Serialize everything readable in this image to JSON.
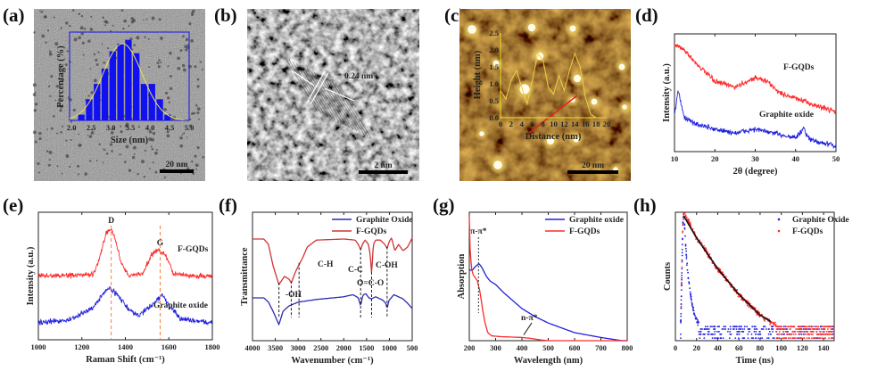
{
  "panel_labels": [
    "(a)",
    "(b)",
    "(c)",
    "(d)",
    "(e)",
    "(f)",
    "(g)",
    "(h)"
  ],
  "colors": {
    "red": "#ff2a2a",
    "blue": "#2020e0",
    "ftir_red": "#d03434",
    "ftir_blue": "#2a2ab0",
    "inset_yellow": "#f0e020",
    "afm_brown": "#6a3c08"
  },
  "panel_a": {
    "scale_bar": "20 nm",
    "inset": {
      "type": "bar",
      "xlabel": "Size (nm)",
      "ylabel": "Percentage (%)",
      "xlim": [
        1.95,
        5.0
      ],
      "xticks": [
        "2.0",
        "2.5",
        "3.0",
        "3.5",
        "4.0",
        "4.5",
        "5.0"
      ],
      "bar_centers": [
        2.25,
        2.45,
        2.65,
        2.85,
        3.05,
        3.25,
        3.45,
        3.65,
        3.85,
        4.05,
        4.25,
        4.45
      ],
      "bar_values": [
        1.5,
        5.5,
        9.5,
        13.5,
        18,
        20,
        21,
        17.5,
        9.5,
        9.5,
        5.5,
        1.5
      ],
      "fit": {
        "type": "gaussian",
        "mean": 3.3,
        "sigma": 0.5,
        "peak": 20
      }
    }
  },
  "panel_b": {
    "scale_bar": "2 nm",
    "lattice_spacing": "0.24 nm"
  },
  "panel_c": {
    "scale_bar": "20 nm",
    "inset": {
      "type": "line",
      "xlabel": "Distance (nm)",
      "ylabel": "Height (nm)",
      "xlim": [
        0,
        20
      ],
      "ylim": [
        0,
        2.5
      ],
      "xticks": [
        "0",
        "2",
        "4",
        "6",
        "8",
        "10",
        "12",
        "14",
        "16",
        "18",
        "20"
      ],
      "yticks": [
        "0.0",
        "0.5",
        "1.0",
        "1.5",
        "2.0",
        "2.5"
      ],
      "x": [
        0,
        1,
        2,
        3,
        4,
        5,
        6,
        7,
        8,
        9,
        10,
        11,
        12,
        13,
        14,
        15,
        16,
        17,
        18,
        20
      ],
      "y": [
        0.8,
        0.55,
        1.1,
        1.4,
        0.9,
        0.4,
        1.1,
        1.9,
        1.7,
        0.9,
        0.7,
        1.25,
        0.8,
        1.4,
        1.9,
        1.5,
        0.6,
        0.1,
        0.0,
        0.0
      ]
    }
  },
  "chart_data": [
    {
      "id": "d",
      "type": "line",
      "xlabel": "2θ (degree)",
      "ylabel": "Intensity (a.u.)",
      "xlim": [
        10,
        50
      ],
      "ylim": [
        -0.1,
        2.0
      ],
      "xticks": [
        "10",
        "20",
        "30",
        "40",
        "50"
      ],
      "series": [
        {
          "name": "F-GQDs",
          "x": [
            10,
            12,
            15,
            20,
            25,
            30,
            33,
            36,
            40,
            45,
            50
          ],
          "y": [
            1.8,
            1.75,
            1.5,
            1.15,
            1.05,
            1.22,
            1.15,
            0.95,
            0.85,
            0.72,
            0.62
          ]
        },
        {
          "name": "Graphite oxide",
          "x": [
            10,
            10.6,
            11,
            11.5,
            12.5,
            15,
            20,
            25,
            30,
            35,
            40,
            41.5,
            42,
            42.6,
            44,
            50
          ],
          "y": [
            0.55,
            0.85,
            0.98,
            0.8,
            0.5,
            0.4,
            0.3,
            0.23,
            0.3,
            0.22,
            0.15,
            0.25,
            0.35,
            0.18,
            0.1,
            0.0
          ]
        }
      ]
    },
    {
      "id": "e",
      "type": "line",
      "xlabel": "Raman Shift (cm⁻¹)",
      "ylabel": "Intensity (a.u.)",
      "xlim": [
        1000,
        1800
      ],
      "ylim": [
        -0.2,
        2.2
      ],
      "xticks": [
        "1000",
        "1200",
        "1400",
        "1600",
        "1800"
      ],
      "annotations": [
        {
          "text": "D",
          "x": 1335
        },
        {
          "text": "G",
          "x": 1560
        }
      ],
      "series": [
        {
          "name": "F-GQDs",
          "x": [
            1000,
            1250,
            1280,
            1310,
            1330,
            1350,
            1380,
            1420,
            1480,
            1520,
            1555,
            1590,
            1620,
            1700,
            1800
          ],
          "y": [
            1.0,
            1.02,
            1.3,
            1.8,
            1.9,
            1.75,
            1.25,
            1.0,
            1.05,
            1.4,
            1.5,
            1.35,
            1.05,
            1.0,
            1.0
          ]
        },
        {
          "name": "Graphite oxide",
          "x": [
            1000,
            1150,
            1250,
            1300,
            1330,
            1370,
            1420,
            1460,
            1520,
            1570,
            1600,
            1650,
            1800
          ],
          "y": [
            0.12,
            0.18,
            0.4,
            0.68,
            0.78,
            0.62,
            0.35,
            0.25,
            0.45,
            0.65,
            0.45,
            0.2,
            0.12
          ]
        }
      ]
    },
    {
      "id": "f",
      "type": "line",
      "xlabel": "Wavenumber (cm⁻¹)",
      "ylabel": "Transmittance",
      "xlim": [
        4000,
        500
      ],
      "ylim": [
        -0.3,
        2.1
      ],
      "xticks": [
        "4000",
        "3500",
        "3000",
        "2500",
        "2000",
        "1500",
        "1000",
        "500"
      ],
      "legend": "top-right",
      "series": [
        {
          "name": "Graphite Oxide",
          "x": [
            4000,
            3750,
            3650,
            3550,
            3420,
            3330,
            3200,
            3000,
            2600,
            2000,
            1800,
            1680,
            1630,
            1580,
            1520,
            1450,
            1400,
            1300,
            1150,
            1080,
            1050,
            1010,
            900,
            700,
            600,
            500
          ],
          "y": [
            0.5,
            0.5,
            0.42,
            0.25,
            0.0,
            0.25,
            0.35,
            0.42,
            0.47,
            0.52,
            0.56,
            0.5,
            0.35,
            0.55,
            0.58,
            0.5,
            0.48,
            0.52,
            0.46,
            0.4,
            0.3,
            0.45,
            0.56,
            0.48,
            0.4,
            0.3
          ]
        },
        {
          "name": "F-GQDs",
          "x": [
            4000,
            3750,
            3650,
            3550,
            3420,
            3300,
            3200,
            3150,
            3050,
            2980,
            2900,
            2800,
            2600,
            2000,
            1750,
            1680,
            1630,
            1580,
            1530,
            1460,
            1420,
            1390,
            1350,
            1300,
            1200,
            1100,
            1050,
            1000,
            950,
            880,
            800,
            700,
            600,
            500
          ],
          "y": [
            1.6,
            1.6,
            1.5,
            1.1,
            0.75,
            0.9,
            0.85,
            0.78,
            1.0,
            1.12,
            1.25,
            1.45,
            1.58,
            1.6,
            1.58,
            1.5,
            1.4,
            1.52,
            1.58,
            1.5,
            1.3,
            0.95,
            1.5,
            1.58,
            1.58,
            1.5,
            1.42,
            1.56,
            1.62,
            1.38,
            1.5,
            1.38,
            1.45,
            1.62
          ]
        }
      ],
      "annotations": [
        {
          "text": "C-H",
          "marks": [
            2980
          ]
        },
        {
          "text": "-OH",
          "marks": [
            3420,
            3150
          ]
        },
        {
          "text": "C-C",
          "marks": [
            1630
          ]
        },
        {
          "text": "O=C-O",
          "marks": [
            1390
          ]
        },
        {
          "text": "C-OH",
          "marks": [
            1050
          ]
        }
      ]
    },
    {
      "id": "g",
      "type": "line",
      "xlabel": "Wavelength (nm)",
      "ylabel": "Absorption",
      "xlim": [
        200,
        800
      ],
      "ylim": [
        0,
        1.6
      ],
      "xticks": [
        "200",
        "300",
        "400",
        "500",
        "600",
        "700",
        "800"
      ],
      "legend": "top-right",
      "annotations": [
        {
          "text": "π-π*",
          "x": 235
        },
        {
          "text": "n-π*",
          "x": 400
        }
      ],
      "series": [
        {
          "name": "Graphite oxide",
          "x": [
            200,
            212,
            225,
            237,
            250,
            265,
            280,
            300,
            330,
            400,
            450,
            500,
            600,
            700,
            780,
            800
          ],
          "y": [
            0.88,
            0.88,
            0.93,
            0.96,
            0.9,
            0.8,
            0.74,
            0.7,
            0.6,
            0.4,
            0.3,
            0.22,
            0.1,
            0.04,
            0.0,
            0.0
          ]
        },
        {
          "name": "F-GQDs",
          "x": [
            200,
            203,
            208,
            215,
            230,
            240,
            250,
            260,
            270,
            285,
            320,
            400,
            430,
            470,
            500,
            800
          ],
          "y": [
            1.55,
            1.15,
            0.9,
            0.82,
            0.75,
            0.62,
            0.4,
            0.22,
            0.1,
            0.06,
            0.05,
            0.04,
            0.03,
            0.01,
            0.0,
            0.0
          ]
        }
      ]
    },
    {
      "id": "h",
      "type": "scatter",
      "xlabel": "Time (ns)",
      "ylabel": "Counts",
      "xlim": [
        0,
        150
      ],
      "ylim": [
        0,
        1.0
      ],
      "xticks": [
        "0",
        "20",
        "40",
        "60",
        "80",
        "100",
        "120",
        "140"
      ],
      "legend": "top-right",
      "series": [
        {
          "name": "Graphite Oxide",
          "x": [
            5,
            7,
            8,
            10,
            12,
            15,
            18,
            22,
            30,
            150
          ],
          "y": [
            0.1,
            0.9,
            1.0,
            0.7,
            0.5,
            0.32,
            0.2,
            0.12,
            0.08,
            0.06
          ]
        },
        {
          "name": "F-GQDs",
          "x": [
            5,
            7,
            8,
            20,
            40,
            60,
            80,
            90,
            100,
            150
          ],
          "y": [
            0.1,
            0.9,
            1.0,
            0.8,
            0.56,
            0.36,
            0.2,
            0.14,
            0.1,
            0.08
          ]
        }
      ],
      "fit": {
        "x": [
          8,
          20,
          40,
          60,
          80,
          90
        ],
        "y": [
          0.97,
          0.8,
          0.56,
          0.36,
          0.2,
          0.15
        ]
      }
    }
  ]
}
